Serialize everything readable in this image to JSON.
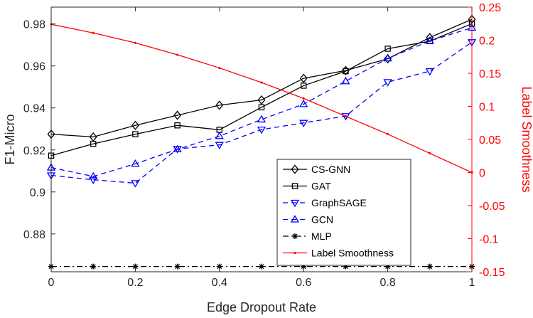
{
  "chart_data": {
    "type": "line",
    "xlabel": "Edge Dropout Rate",
    "ylabel": "F1-Micro",
    "y2label": "Label Smoothness",
    "x": [
      0,
      0.1,
      0.2,
      0.3,
      0.4,
      0.5,
      0.6,
      0.7,
      0.8,
      0.9,
      1
    ],
    "xlim": [
      0,
      1
    ],
    "ylim": [
      0.862,
      0.988
    ],
    "y2lim": [
      -0.15,
      0.25
    ],
    "x_ticks": [
      "0",
      "0.2",
      "0.4",
      "0.6",
      "0.8",
      "1"
    ],
    "x_tick_values": [
      0,
      0.2,
      0.4,
      0.6,
      0.8,
      1
    ],
    "y_ticks": [
      "0.88",
      "0.9",
      "0.92",
      "0.94",
      "0.96",
      "0.98"
    ],
    "y_tick_values": [
      0.88,
      0.9,
      0.92,
      0.94,
      0.96,
      0.98
    ],
    "y2_ticks": [
      "-0.15",
      "-0.1",
      "-0.05",
      "0",
      "0.05",
      "0.1",
      "0.15",
      "0.2",
      "0.25"
    ],
    "y2_tick_values": [
      -0.15,
      -0.1,
      -0.05,
      0,
      0.05,
      0.1,
      0.15,
      0.2,
      0.25
    ],
    "grid": false,
    "legend_position": "bottom-right",
    "colors": {
      "black": "#000000",
      "blue": "#0000ff",
      "red": "#ff0000",
      "right_axis": "#ff0000"
    },
    "series": [
      {
        "name": "CS-GNN",
        "axis": "left",
        "color": "#000000",
        "dash": "solid",
        "marker": "diamond",
        "values": [
          0.9275,
          0.9262,
          0.9317,
          0.9365,
          0.9413,
          0.9438,
          0.9541,
          0.9578,
          0.9634,
          0.9735,
          0.9822
        ]
      },
      {
        "name": "GAT",
        "axis": "left",
        "color": "#000000",
        "dash": "solid",
        "marker": "square",
        "values": [
          0.9173,
          0.9229,
          0.9275,
          0.9317,
          0.9296,
          0.9403,
          0.9506,
          0.9575,
          0.9682,
          0.9718,
          0.9801
        ]
      },
      {
        "name": "GraphSAGE",
        "axis": "left",
        "color": "#0000ff",
        "dash": "dashed",
        "marker": "triangle-down",
        "values": [
          0.9079,
          0.9058,
          0.9042,
          0.9205,
          0.9224,
          0.9297,
          0.9329,
          0.9361,
          0.9523,
          0.9575,
          0.9713
        ]
      },
      {
        "name": "GCN",
        "axis": "left",
        "color": "#0000ff",
        "dash": "dashed",
        "marker": "triangle-up",
        "values": [
          0.9116,
          0.9074,
          0.9134,
          0.9203,
          0.9266,
          0.9345,
          0.9418,
          0.9527,
          0.9636,
          0.9719,
          0.9782
        ]
      },
      {
        "name": "MLP",
        "axis": "left",
        "color": "#000000",
        "dash": "dashdot",
        "marker": "star",
        "values": [
          0.8645,
          0.8645,
          0.8645,
          0.8645,
          0.8645,
          0.8645,
          0.8645,
          0.8645,
          0.8645,
          0.8645,
          0.8645
        ]
      },
      {
        "name": "Label Smoothness",
        "axis": "right",
        "color": "#ff0000",
        "dash": "solid",
        "marker": "dot",
        "values": [
          0.224,
          0.211,
          0.196,
          0.178,
          0.158,
          0.136,
          0.112,
          0.085,
          0.058,
          0.029,
          0.0
        ]
      }
    ]
  }
}
